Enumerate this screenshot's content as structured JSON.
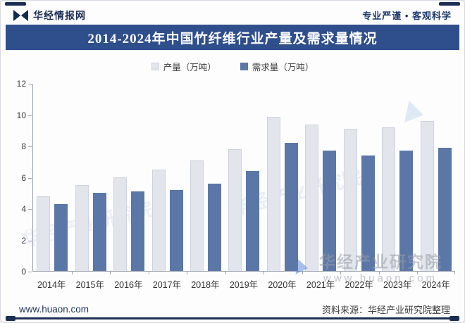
{
  "header": {
    "brand": "华经情报网",
    "slogan": "专业严谨 • 客观科学"
  },
  "title": "2014-2024年中国竹纤维行业产量及需求量情况",
  "chart_data": {
    "type": "bar",
    "categories": [
      "2014年",
      "2015年",
      "2016年",
      "2017年",
      "2018年",
      "2019年",
      "2020年",
      "2021年",
      "2022年",
      "2023年",
      "2024年"
    ],
    "series": [
      {
        "name": "产量（万吨）",
        "color": "#e2e5ec",
        "values": [
          4.8,
          5.5,
          6.0,
          6.5,
          7.1,
          7.8,
          9.9,
          9.4,
          9.1,
          9.2,
          9.6
        ]
      },
      {
        "name": "需求量（万吨）",
        "color": "#5b77a7",
        "values": [
          4.3,
          5.0,
          5.1,
          5.2,
          5.6,
          6.4,
          8.2,
          7.7,
          7.4,
          7.7,
          7.9
        ]
      }
    ],
    "title": "2014-2024年中国竹纤维行业产量及需求量情况",
    "xlabel": "",
    "ylabel": "",
    "ylim": [
      0,
      12
    ],
    "ytick_step": 2,
    "grid": false,
    "legend_position": "top-center"
  },
  "watermarks": {
    "text": "华经产业研究院",
    "url": "www.huaon.com"
  },
  "footer": {
    "site": "www.huaon.com",
    "source": "资料来源：华经产业研究院整理"
  },
  "colors": {
    "banner": "#2f4e8c",
    "accent_dark": "#1b2f54",
    "production_bar": "#e2e5ec",
    "demand_bar": "#5b77a7"
  }
}
